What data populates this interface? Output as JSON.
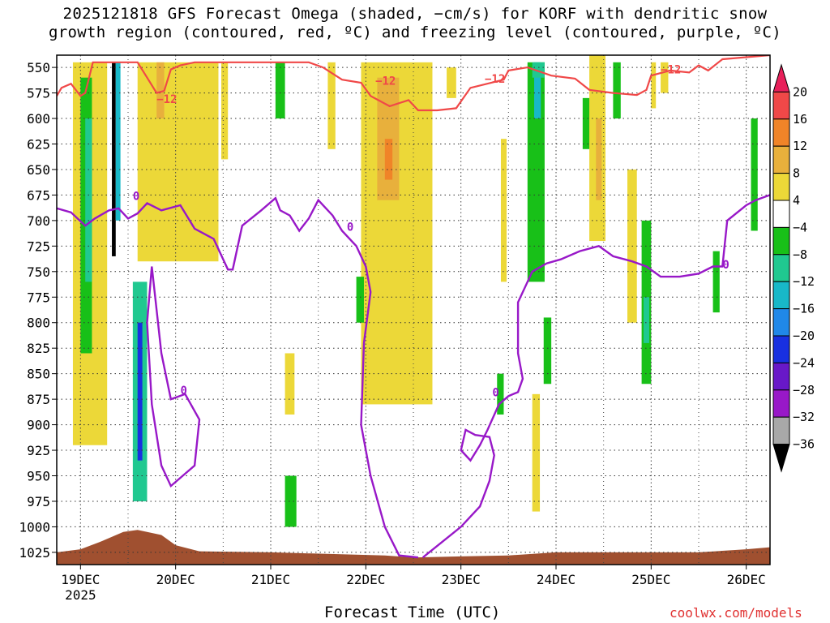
{
  "chart_data": {
    "type": "heatmap",
    "title_lines": [
      "2025121818 GFS Forecast Omega (shaded, −cm/s) for KORF with dendritic snow",
      "growth region (contoured, red, ºC) and freezing level (contoured, purple, ºC)"
    ],
    "xlabel": "Forecast Time (UTC)",
    "credit": "coolwx.com/models",
    "x_ticks": [
      "19DEC",
      "20DEC",
      "21DEC",
      "22DEC",
      "23DEC",
      "24DEC",
      "25DEC",
      "26DEC"
    ],
    "x_year": "2025",
    "x_range_days": [
      18.75,
      26.25
    ],
    "y_axis": "pressure (hPa), inverted",
    "y_ticks": [
      550,
      575,
      600,
      625,
      650,
      675,
      700,
      725,
      750,
      775,
      800,
      825,
      850,
      875,
      900,
      925,
      950,
      975,
      1000,
      1025
    ],
    "y_range": [
      538,
      1037
    ],
    "grid": true,
    "colorbar": {
      "labels": [
        "20",
        "16",
        "12",
        "8",
        "4",
        "−4",
        "−8",
        "−12",
        "−16",
        "−20",
        "−24",
        "−28",
        "−32",
        "−36"
      ],
      "colors": [
        "#e8205a",
        "#f04848",
        "#f08428",
        "#e8b03c",
        "#ecd838",
        "#ffffff",
        "#18c018",
        "#20c890",
        "#18b8c8",
        "#2088e8",
        "#1830e0",
        "#6818c8",
        "#9818c8",
        "#a8a8a8",
        "#000000"
      ]
    },
    "omega_regions": [
      {
        "x": [
          18.92,
          19.28
        ],
        "p": [
          545,
          920
        ],
        "value": 5
      },
      {
        "x": [
          19.0,
          19.12
        ],
        "p": [
          560,
          830
        ],
        "value": -6
      },
      {
        "x": [
          19.05,
          19.12
        ],
        "p": [
          600,
          760
        ],
        "value": -10
      },
      {
        "x": [
          19.33,
          19.37
        ],
        "p": [
          545,
          735
        ],
        "value": -40
      },
      {
        "x": [
          19.37,
          19.42
        ],
        "p": [
          545,
          700
        ],
        "value": -14
      },
      {
        "x": [
          19.55,
          19.7
        ],
        "p": [
          760,
          975
        ],
        "value": -10
      },
      {
        "x": [
          19.6,
          19.65
        ],
        "p": [
          800,
          935
        ],
        "value": -22
      },
      {
        "x": [
          19.6,
          20.45
        ],
        "p": [
          545,
          740
        ],
        "value": 5
      },
      {
        "x": [
          19.8,
          19.88
        ],
        "p": [
          545,
          600
        ],
        "value": 10
      },
      {
        "x": [
          20.48,
          20.55
        ],
        "p": [
          545,
          640
        ],
        "value": 5
      },
      {
        "x": [
          21.05,
          21.15
        ],
        "p": [
          545,
          600
        ],
        "value": -6
      },
      {
        "x": [
          21.15,
          21.25
        ],
        "p": [
          830,
          890
        ],
        "value": 5
      },
      {
        "x": [
          21.15,
          21.27
        ],
        "p": [
          950,
          1000
        ],
        "value": -6
      },
      {
        "x": [
          21.6,
          21.68
        ],
        "p": [
          545,
          630
        ],
        "value": 5
      },
      {
        "x": [
          21.95,
          22.7
        ],
        "p": [
          545,
          880
        ],
        "value": 5
      },
      {
        "x": [
          22.12,
          22.35
        ],
        "p": [
          560,
          680
        ],
        "value": 10
      },
      {
        "x": [
          22.2,
          22.28
        ],
        "p": [
          620,
          660
        ],
        "value": 13
      },
      {
        "x": [
          21.9,
          21.98
        ],
        "p": [
          755,
          800
        ],
        "value": -6
      },
      {
        "x": [
          22.85,
          22.95
        ],
        "p": [
          550,
          580
        ],
        "value": 5
      },
      {
        "x": [
          23.42,
          23.48
        ],
        "p": [
          620,
          760
        ],
        "value": 5
      },
      {
        "x": [
          23.38,
          23.45
        ],
        "p": [
          850,
          890
        ],
        "value": -6
      },
      {
        "x": [
          23.7,
          23.88
        ],
        "p": [
          545,
          760
        ],
        "value": -8
      },
      {
        "x": [
          23.77,
          23.84
        ],
        "p": [
          545,
          600
        ],
        "value": -14
      },
      {
        "x": [
          23.75,
          23.83
        ],
        "p": [
          870,
          985
        ],
        "value": 5
      },
      {
        "x": [
          23.87,
          23.95
        ],
        "p": [
          795,
          860
        ],
        "value": -6
      },
      {
        "x": [
          23.75,
          23.88
        ],
        "p": [
          545,
          560
        ],
        "value": -10
      },
      {
        "x": [
          24.28,
          24.38
        ],
        "p": [
          580,
          630
        ],
        "value": -6
      },
      {
        "x": [
          24.35,
          24.52
        ],
        "p": [
          530,
          720
        ],
        "value": 5
      },
      {
        "x": [
          24.42,
          24.48
        ],
        "p": [
          600,
          680
        ],
        "value": 10
      },
      {
        "x": [
          24.6,
          24.68
        ],
        "p": [
          545,
          600
        ],
        "value": -6
      },
      {
        "x": [
          24.75,
          24.85
        ],
        "p": [
          650,
          800
        ],
        "value": 5
      },
      {
        "x": [
          24.9,
          25.0
        ],
        "p": [
          700,
          860
        ],
        "value": -6
      },
      {
        "x": [
          24.92,
          24.98
        ],
        "p": [
          775,
          820
        ],
        "value": -10
      },
      {
        "x": [
          25.0,
          25.05
        ],
        "p": [
          545,
          590
        ],
        "value": 5
      },
      {
        "x": [
          25.1,
          25.18
        ],
        "p": [
          545,
          575
        ],
        "value": 5
      },
      {
        "x": [
          25.65,
          25.72
        ],
        "p": [
          730,
          790
        ],
        "value": -6
      },
      {
        "x": [
          26.05,
          26.12
        ],
        "p": [
          600,
          710
        ],
        "value": -6
      }
    ],
    "dgz_contour": {
      "label": "−12",
      "color": "#f04848",
      "path": [
        [
          18.75,
          578
        ],
        [
          18.8,
          570
        ],
        [
          18.9,
          566
        ],
        [
          19.0,
          578
        ],
        [
          19.05,
          575
        ],
        [
          19.13,
          545
        ],
        [
          19.6,
          545
        ],
        [
          19.7,
          560
        ],
        [
          19.8,
          575
        ],
        [
          19.88,
          573
        ],
        [
          19.95,
          552
        ],
        [
          20.05,
          548
        ],
        [
          20.2,
          545
        ],
        [
          21.4,
          545
        ],
        [
          21.55,
          550
        ],
        [
          21.75,
          562
        ],
        [
          21.95,
          565
        ],
        [
          22.05,
          578
        ],
        [
          22.25,
          588
        ],
        [
          22.45,
          582
        ],
        [
          22.55,
          592
        ],
        [
          22.75,
          592
        ],
        [
          22.95,
          590
        ],
        [
          23.1,
          570
        ],
        [
          23.45,
          562
        ],
        [
          23.5,
          553
        ],
        [
          23.7,
          550
        ],
        [
          23.95,
          558
        ],
        [
          24.2,
          561
        ],
        [
          24.35,
          572
        ],
        [
          24.6,
          575
        ],
        [
          24.85,
          577
        ],
        [
          24.95,
          572
        ],
        [
          25.0,
          558
        ],
        [
          25.2,
          553
        ],
        [
          25.4,
          555
        ],
        [
          25.5,
          548
        ],
        [
          25.6,
          553
        ],
        [
          25.75,
          542
        ],
        [
          26.25,
          538
        ]
      ]
    },
    "freezing_level_contour": {
      "label": "0",
      "color": "#9818c8",
      "segments": [
        [
          [
            18.75,
            688
          ],
          [
            18.9,
            692
          ],
          [
            19.05,
            705
          ],
          [
            19.15,
            698
          ],
          [
            19.3,
            690
          ],
          [
            19.4,
            688
          ],
          [
            19.5,
            698
          ],
          [
            19.6,
            693
          ],
          [
            19.7,
            683
          ],
          [
            19.85,
            690
          ],
          [
            20.05,
            685
          ],
          [
            20.2,
            708
          ],
          [
            20.4,
            718
          ],
          [
            20.55,
            748
          ],
          [
            20.6,
            748
          ],
          [
            20.7,
            705
          ],
          [
            20.9,
            690
          ],
          [
            21.05,
            678
          ],
          [
            21.1,
            690
          ],
          [
            21.2,
            695
          ],
          [
            21.3,
            710
          ],
          [
            21.4,
            698
          ],
          [
            21.5,
            680
          ],
          [
            21.65,
            695
          ],
          [
            21.75,
            710
          ],
          [
            21.9,
            725
          ],
          [
            22.0,
            745
          ],
          [
            22.05,
            770
          ],
          [
            21.98,
            820
          ],
          [
            21.95,
            900
          ],
          [
            22.05,
            950
          ],
          [
            22.2,
            1000
          ],
          [
            22.35,
            1028
          ],
          [
            22.55,
            1030
          ]
        ],
        [
          [
            22.6,
            1030
          ],
          [
            22.8,
            1015
          ],
          [
            23.0,
            1000
          ],
          [
            23.2,
            980
          ],
          [
            23.3,
            955
          ],
          [
            23.35,
            930
          ],
          [
            23.3,
            912
          ],
          [
            23.15,
            910
          ],
          [
            23.05,
            905
          ],
          [
            23.0,
            925
          ],
          [
            23.1,
            935
          ],
          [
            23.2,
            920
          ],
          [
            23.28,
            905
          ],
          [
            23.4,
            880
          ],
          [
            23.5,
            872
          ],
          [
            23.6,
            868
          ],
          [
            23.65,
            855
          ],
          [
            23.6,
            830
          ],
          [
            23.6,
            780
          ],
          [
            23.75,
            750
          ],
          [
            23.9,
            742
          ],
          [
            24.05,
            738
          ],
          [
            24.25,
            730
          ],
          [
            24.45,
            725
          ],
          [
            24.6,
            735
          ],
          [
            24.8,
            740
          ],
          [
            24.95,
            745
          ],
          [
            25.1,
            755
          ],
          [
            25.3,
            755
          ],
          [
            25.5,
            752
          ],
          [
            25.65,
            745
          ],
          [
            25.75,
            745
          ],
          [
            25.8,
            700
          ],
          [
            26.0,
            685
          ],
          [
            26.1,
            680
          ],
          [
            26.25,
            675
          ]
        ],
        [
          [
            19.75,
            745
          ],
          [
            19.85,
            830
          ],
          [
            19.95,
            875
          ],
          [
            20.1,
            870
          ],
          [
            20.25,
            895
          ],
          [
            20.2,
            940
          ],
          [
            19.95,
            960
          ],
          [
            19.85,
            940
          ],
          [
            19.75,
            880
          ],
          [
            19.7,
            800
          ],
          [
            19.75,
            745
          ]
        ]
      ]
    },
    "surface_terrain_pressure": [
      [
        18.75,
        1025
      ],
      [
        19.0,
        1022
      ],
      [
        19.2,
        1015
      ],
      [
        19.45,
        1005
      ],
      [
        19.6,
        1003
      ],
      [
        19.85,
        1008
      ],
      [
        20.0,
        1018
      ],
      [
        20.25,
        1024
      ],
      [
        21.0,
        1025
      ],
      [
        22.2,
        1028
      ],
      [
        22.5,
        1030
      ],
      [
        23.0,
        1029
      ],
      [
        23.5,
        1028
      ],
      [
        24.0,
        1025
      ],
      [
        25.0,
        1025
      ],
      [
        25.5,
        1025
      ],
      [
        26.0,
        1022
      ],
      [
        26.25,
        1020
      ]
    ],
    "contour_labels": [
      {
        "text": "−12",
        "x": 19.8,
        "p": 585,
        "color": "#f04848"
      },
      {
        "text": "−12",
        "x": 22.1,
        "p": 567,
        "color": "#f04848"
      },
      {
        "text": "−12",
        "x": 23.25,
        "p": 565,
        "color": "#f04848"
      },
      {
        "text": "−12",
        "x": 25.1,
        "p": 556,
        "color": "#f04848"
      },
      {
        "text": "0",
        "x": 19.55,
        "p": 680,
        "color": "#9818c8"
      },
      {
        "text": "0",
        "x": 21.8,
        "p": 710,
        "color": "#9818c8"
      },
      {
        "text": "0",
        "x": 20.05,
        "p": 870,
        "color": "#9818c8"
      },
      {
        "text": "0",
        "x": 23.33,
        "p": 872,
        "color": "#9818c8"
      },
      {
        "text": "0",
        "x": 25.75,
        "p": 747,
        "color": "#9818c8"
      }
    ]
  }
}
